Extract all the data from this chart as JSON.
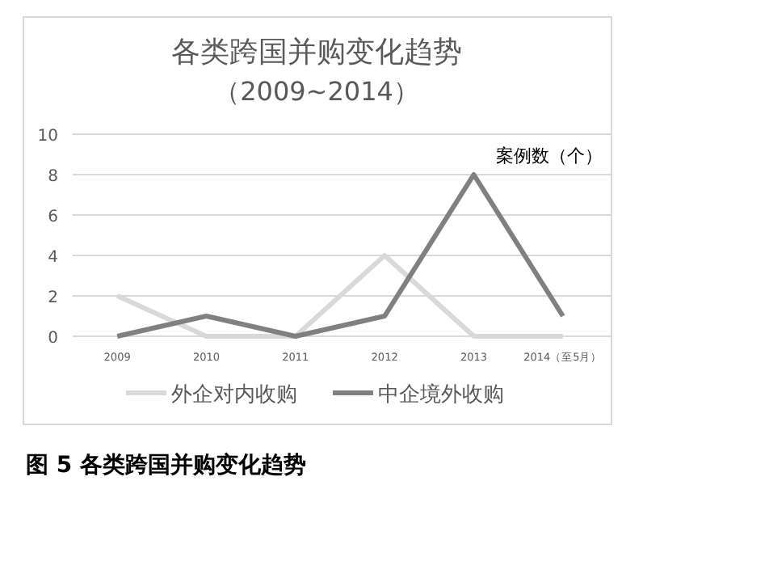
{
  "chart_data": {
    "type": "line",
    "title": "各类跨国并购变化趋势",
    "subtitle": "（2009~2014）",
    "ylabel": "案例数（个）",
    "annotations": [
      "图 5 各类跨国并购变化趋势"
    ],
    "categories": [
      "2009",
      "2010",
      "2011",
      "2012",
      "2013",
      "2014（至5月）"
    ],
    "series": [
      {
        "name": "外企对内收购",
        "color": "#d9d9d9",
        "values": [
          2,
          0,
          0,
          4,
          0,
          0
        ]
      },
      {
        "name": "中企境外收购",
        "color": "#808080",
        "values": [
          0,
          1,
          0,
          1,
          8,
          1
        ]
      }
    ],
    "ylim": [
      0,
      10
    ],
    "yticks": [
      0,
      2,
      4,
      6,
      8,
      10
    ],
    "grid": "y",
    "legend": "bottom"
  }
}
